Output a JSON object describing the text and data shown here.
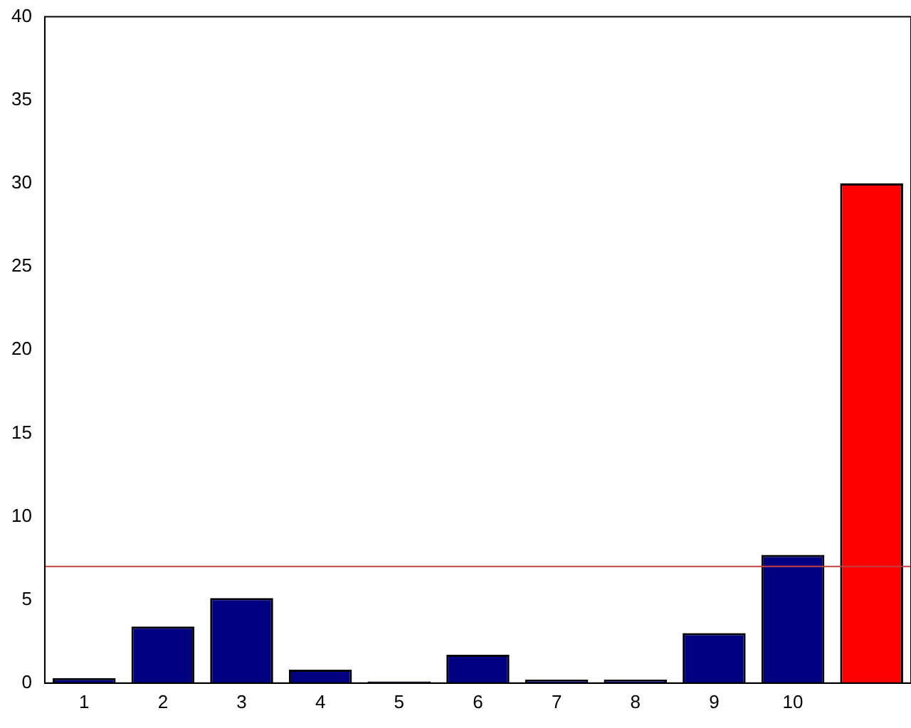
{
  "chart_data": {
    "type": "bar",
    "categories": [
      "1",
      "2",
      "3",
      "4",
      "5",
      "6",
      "7",
      "8",
      "9",
      "10",
      null
    ],
    "values": [
      0.3,
      3.4,
      5.1,
      0.8,
      0.1,
      1.7,
      0.2,
      0.2,
      3.0,
      7.7,
      30
    ],
    "colors": [
      "#000080",
      "#000080",
      "#000080",
      "#000080",
      "#000080",
      "#000080",
      "#000080",
      "#000080",
      "#000080",
      "#000080",
      "#ff0000"
    ],
    "ylim": [
      0,
      40
    ],
    "yticks": [
      0,
      5,
      10,
      15,
      20,
      25,
      30,
      35,
      40
    ],
    "grid": false,
    "legend": false,
    "ref_lines": [
      {
        "axis": "y",
        "value": 7,
        "color": "#c04040"
      }
    ]
  }
}
